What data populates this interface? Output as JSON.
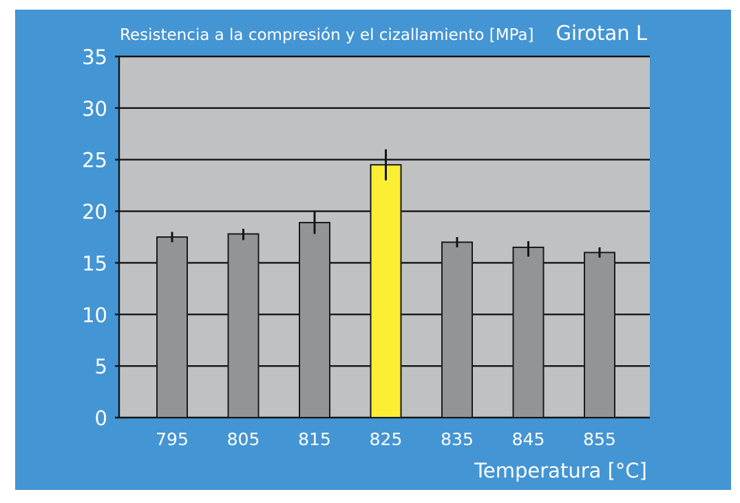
{
  "chart_data": {
    "type": "bar",
    "title": "Resistencia a la compresión y el cizallamiento [MPa]",
    "subtitle": "Girotan L",
    "xlabel": "Temperatura [°C]",
    "ylabel": "",
    "ylim": [
      0,
      35
    ],
    "yticks": [
      0,
      5,
      10,
      15,
      20,
      25,
      30,
      35
    ],
    "grid": true,
    "categories": [
      "795",
      "805",
      "815",
      "825",
      "835",
      "845",
      "855"
    ],
    "values": [
      17.5,
      17.8,
      18.9,
      24.5,
      17.0,
      16.5,
      16.0
    ],
    "error_low": [
      17.0,
      17.2,
      17.8,
      23.0,
      16.5,
      15.6,
      15.5
    ],
    "error_high": [
      18.0,
      18.3,
      20.0,
      26.0,
      17.5,
      17.1,
      16.5
    ],
    "highlight_category": "825",
    "colors": {
      "background": "#4495d4",
      "plot_area": "#c0c1c3",
      "bar": "#939495",
      "highlight_bar": "#fbee33",
      "text": "#ffffff"
    }
  }
}
